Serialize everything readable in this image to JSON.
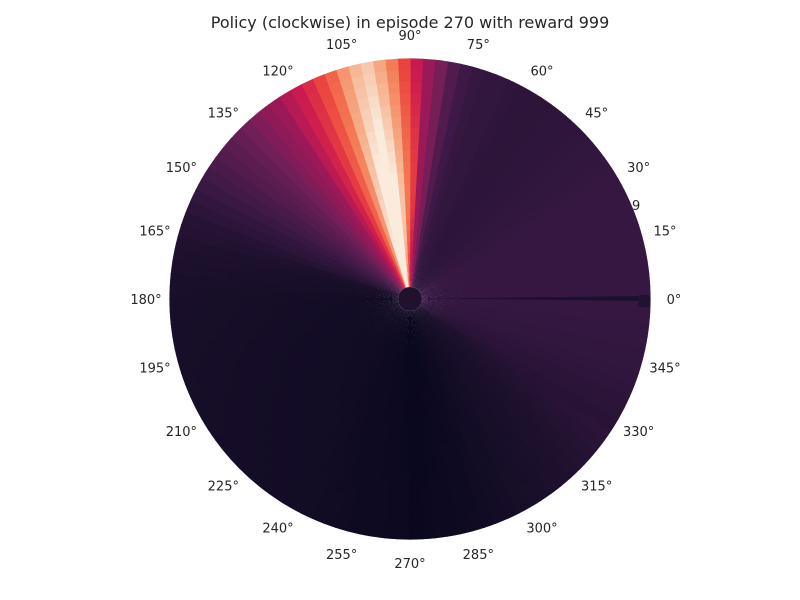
{
  "chart_data": {
    "type": "heatmap",
    "projection": "polar",
    "title": "Policy (clockwise) in episode 270 with reward 999",
    "colormap": "rocket",
    "grid": false,
    "theta_tick_labels": [
      "0°",
      "15°",
      "30°",
      "45°",
      "60°",
      "75°",
      "90°",
      "105°",
      "120°",
      "135°",
      "150°",
      "165°",
      "180°",
      "195°",
      "210°",
      "225°",
      "240°",
      "255°",
      "270°",
      "285°",
      "300°",
      "315°",
      "330°",
      "345°"
    ],
    "partial_radial_label": "9",
    "intensity_profile": [
      {
        "deg": 0,
        "value": 0.2
      },
      {
        "deg": 15,
        "value": 0.2
      },
      {
        "deg": 30,
        "value": 0.2
      },
      {
        "deg": 45,
        "value": 0.18
      },
      {
        "deg": 60,
        "value": 0.17
      },
      {
        "deg": 75,
        "value": 0.2
      },
      {
        "deg": 80,
        "value": 0.28
      },
      {
        "deg": 85,
        "value": 0.45
      },
      {
        "deg": 90,
        "value": 0.6
      },
      {
        "deg": 95,
        "value": 0.8
      },
      {
        "deg": 100,
        "value": 0.93
      },
      {
        "deg": 105,
        "value": 0.88
      },
      {
        "deg": 110,
        "value": 0.72
      },
      {
        "deg": 115,
        "value": 0.62
      },
      {
        "deg": 120,
        "value": 0.55
      },
      {
        "deg": 125,
        "value": 0.46
      },
      {
        "deg": 130,
        "value": 0.4
      },
      {
        "deg": 135,
        "value": 0.33
      },
      {
        "deg": 142,
        "value": 0.28
      },
      {
        "deg": 150,
        "value": 0.22
      },
      {
        "deg": 165,
        "value": 0.12
      },
      {
        "deg": 180,
        "value": 0.09
      },
      {
        "deg": 210,
        "value": 0.08
      },
      {
        "deg": 240,
        "value": 0.07
      },
      {
        "deg": 268,
        "value": 0.04
      },
      {
        "deg": 272,
        "value": 0.03
      },
      {
        "deg": 285,
        "value": 0.05
      },
      {
        "deg": 300,
        "value": 0.09
      },
      {
        "deg": 315,
        "value": 0.12
      },
      {
        "deg": 330,
        "value": 0.16
      },
      {
        "deg": 345,
        "value": 0.19
      },
      {
        "deg": 360,
        "value": 0.2
      }
    ]
  }
}
